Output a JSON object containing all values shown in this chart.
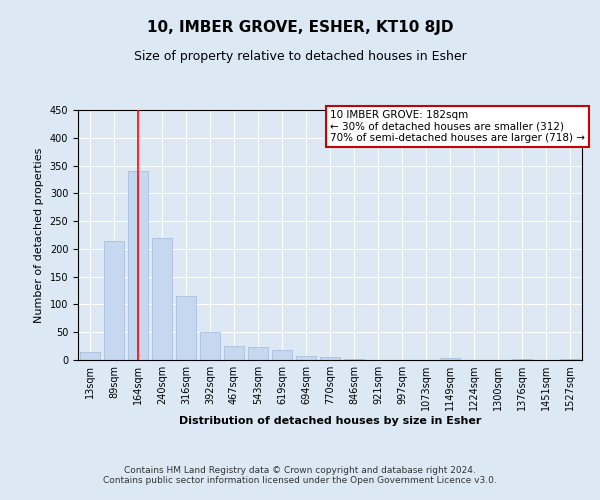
{
  "title": "10, IMBER GROVE, ESHER, KT10 8JD",
  "subtitle": "Size of property relative to detached houses in Esher",
  "xlabel": "Distribution of detached houses by size in Esher",
  "ylabel": "Number of detached properties",
  "bar_labels": [
    "13sqm",
    "89sqm",
    "164sqm",
    "240sqm",
    "316sqm",
    "392sqm",
    "467sqm",
    "543sqm",
    "619sqm",
    "694sqm",
    "770sqm",
    "846sqm",
    "921sqm",
    "997sqm",
    "1073sqm",
    "1149sqm",
    "1224sqm",
    "1300sqm",
    "1376sqm",
    "1451sqm",
    "1527sqm"
  ],
  "bar_heights": [
    15,
    215,
    340,
    220,
    115,
    50,
    25,
    24,
    18,
    7,
    5,
    1,
    0,
    0,
    0,
    3,
    0,
    0,
    1,
    0,
    2
  ],
  "bar_color": "#c5d8f0",
  "bar_edge_color": "#a0b8d8",
  "ylim": [
    0,
    450
  ],
  "yticks": [
    0,
    50,
    100,
    150,
    200,
    250,
    300,
    350,
    400,
    450
  ],
  "red_line_x": 2,
  "annotation_title": "10 IMBER GROVE: 182sqm",
  "annotation_line1": "← 30% of detached houses are smaller (312)",
  "annotation_line2": "70% of semi-detached houses are larger (718) →",
  "annotation_box_color": "#ffffff",
  "annotation_box_edge": "#cc0000",
  "footer_line1": "Contains HM Land Registry data © Crown copyright and database right 2024.",
  "footer_line2": "Contains public sector information licensed under the Open Government Licence v3.0.",
  "background_color": "#dce9f5",
  "plot_bg_color": "#dce9f5",
  "grid_color": "#ffffff",
  "title_fontsize": 11,
  "subtitle_fontsize": 9,
  "axis_label_fontsize": 8,
  "tick_fontsize": 7,
  "annotation_fontsize": 7.5,
  "footer_fontsize": 6.5
}
